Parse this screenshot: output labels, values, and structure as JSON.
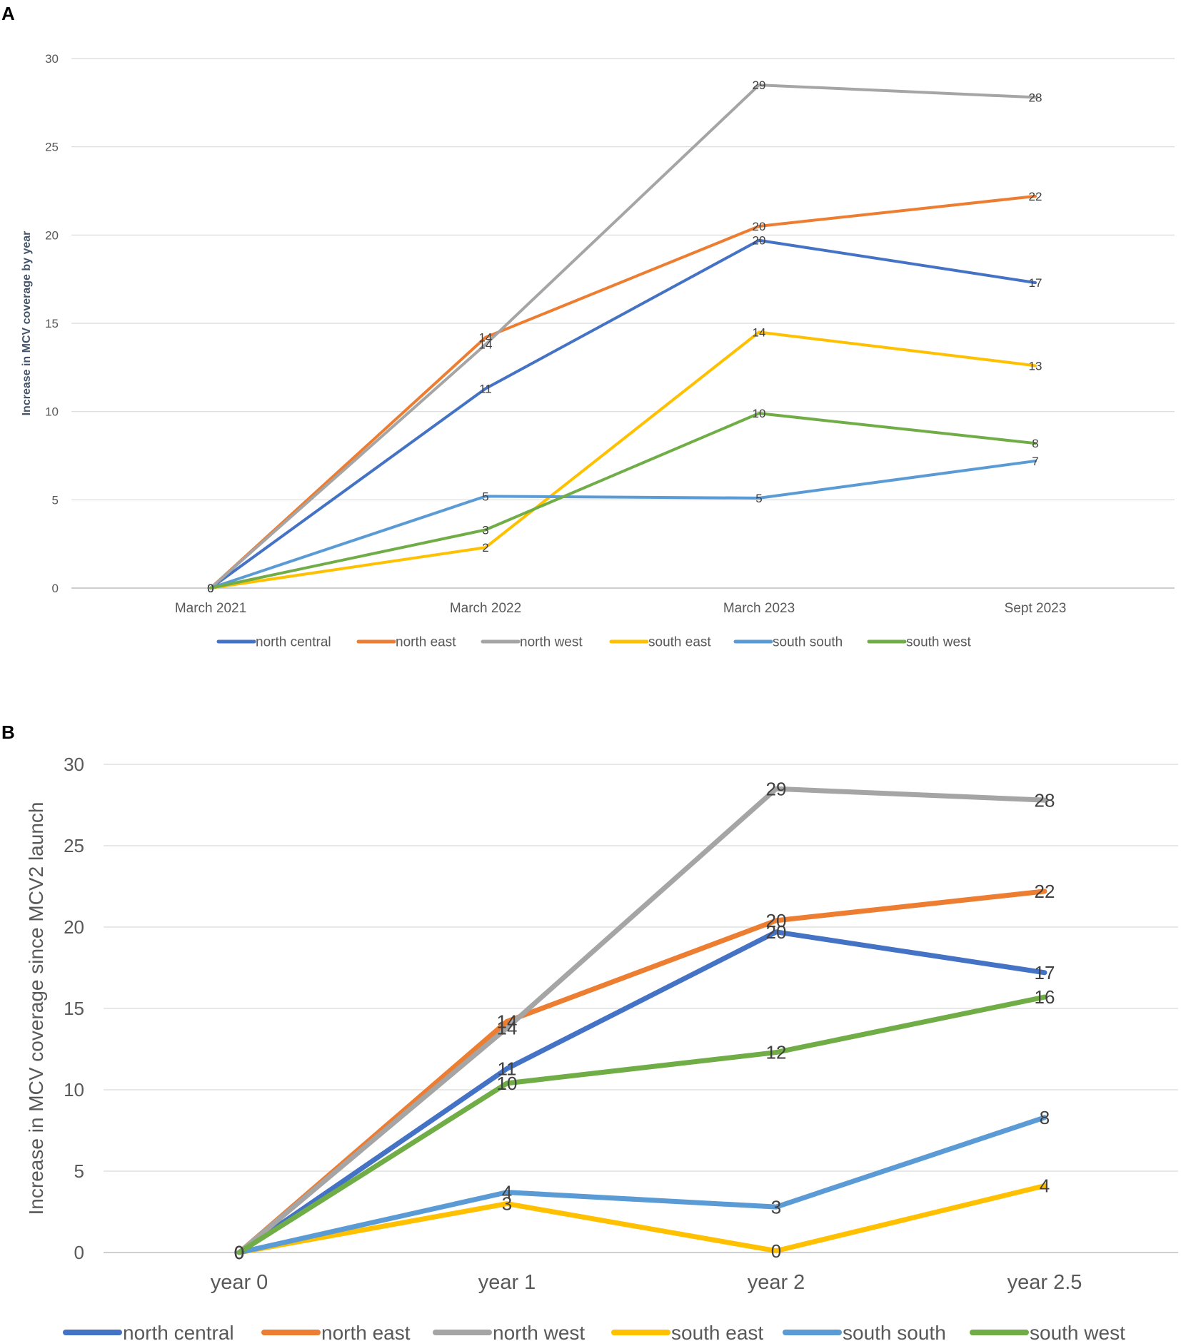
{
  "panel_a_letter": "A",
  "panel_b_letter": "B",
  "chart_data": [
    {
      "type": "line",
      "panel": "A",
      "title": "",
      "xlabel": "",
      "ylabel": "Increase in MCV coverage by year",
      "categories": [
        "March 2021",
        "March 2022",
        "March 2023",
        "Sept 2023"
      ],
      "ylim": [
        0,
        30
      ],
      "yticks": [
        0,
        5,
        10,
        15,
        20,
        25,
        30
      ],
      "grid": true,
      "legend": "bottom",
      "series": [
        {
          "name": "north central",
          "color": "#4472C4",
          "values": [
            0,
            11.3,
            19.7,
            17.3
          ],
          "labels": [
            "0",
            "11",
            "20",
            "17"
          ]
        },
        {
          "name": "north east",
          "color": "#ED7D31",
          "values": [
            0,
            14.2,
            20.5,
            22.2
          ],
          "labels": [
            "0",
            "14",
            "20",
            "22"
          ]
        },
        {
          "name": "north west",
          "color": "#A5A5A5",
          "values": [
            0,
            13.8,
            28.5,
            27.8
          ],
          "labels": [
            "0",
            "14",
            "29",
            "28"
          ]
        },
        {
          "name": "south east",
          "color": "#FFC000",
          "values": [
            0,
            2.3,
            14.5,
            12.6
          ],
          "labels": [
            "0",
            "2",
            "14",
            "13"
          ]
        },
        {
          "name": "south south",
          "color": "#5B9BD5",
          "values": [
            0,
            5.2,
            5.1,
            7.2
          ],
          "labels": [
            "0",
            "5",
            "5",
            "7"
          ]
        },
        {
          "name": "south west",
          "color": "#70AD47",
          "values": [
            0,
            3.3,
            9.9,
            8.2
          ],
          "labels": [
            "0",
            "3",
            "10",
            "8"
          ]
        }
      ]
    },
    {
      "type": "line",
      "panel": "B",
      "title": "",
      "xlabel": "",
      "ylabel": "Increase in MCV coverage since MCV2 launch",
      "categories": [
        "year 0",
        "year 1",
        "year 2",
        "year 2.5"
      ],
      "ylim": [
        0,
        30
      ],
      "yticks": [
        0,
        5,
        10,
        15,
        20,
        25,
        30
      ],
      "grid": true,
      "legend": "bottom",
      "series": [
        {
          "name": "north central",
          "color": "#4472C4",
          "values": [
            0,
            11.3,
            19.7,
            17.2
          ],
          "labels": [
            "0",
            "11",
            "20",
            "17"
          ]
        },
        {
          "name": "north east",
          "color": "#ED7D31",
          "values": [
            0,
            14.2,
            20.4,
            22.2
          ],
          "labels": [
            "0",
            "14",
            "20",
            "22"
          ]
        },
        {
          "name": "north west",
          "color": "#A5A5A5",
          "values": [
            0,
            13.8,
            28.5,
            27.8
          ],
          "labels": [
            "0",
            "14",
            "29",
            "28"
          ]
        },
        {
          "name": "south east",
          "color": "#FFC000",
          "values": [
            0,
            3.0,
            0.1,
            4.1
          ],
          "labels": [
            "0",
            "3",
            "0",
            "4"
          ]
        },
        {
          "name": "south south",
          "color": "#5B9BD5",
          "values": [
            0,
            3.7,
            2.8,
            8.3
          ],
          "labels": [
            "0",
            "4",
            "3",
            "8"
          ]
        },
        {
          "name": "south west",
          "color": "#70AD47",
          "values": [
            0,
            10.4,
            12.3,
            15.7
          ],
          "labels": [
            "0",
            "10",
            "12",
            "16"
          ]
        }
      ]
    }
  ]
}
